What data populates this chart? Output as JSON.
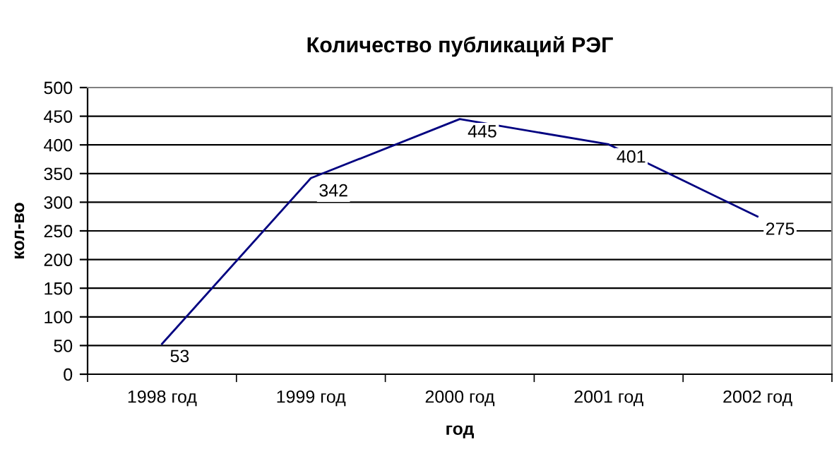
{
  "chart_data": {
    "type": "line",
    "title": "Количество публикаций РЭГ",
    "xlabel": "год",
    "ylabel": "кол-во",
    "categories": [
      "1998 год",
      "1999 год",
      "2000 год",
      "2001 год",
      "2002 год"
    ],
    "series": [
      {
        "color": "#000080",
        "values": [
          53,
          342,
          445,
          401,
          275
        ]
      }
    ],
    "ylim": [
      0,
      500
    ],
    "yticks": [
      0,
      50,
      100,
      150,
      200,
      250,
      300,
      350,
      400,
      450,
      500
    ],
    "grid": "y",
    "data_labels": true,
    "marker": "none",
    "line_style": "solid"
  }
}
